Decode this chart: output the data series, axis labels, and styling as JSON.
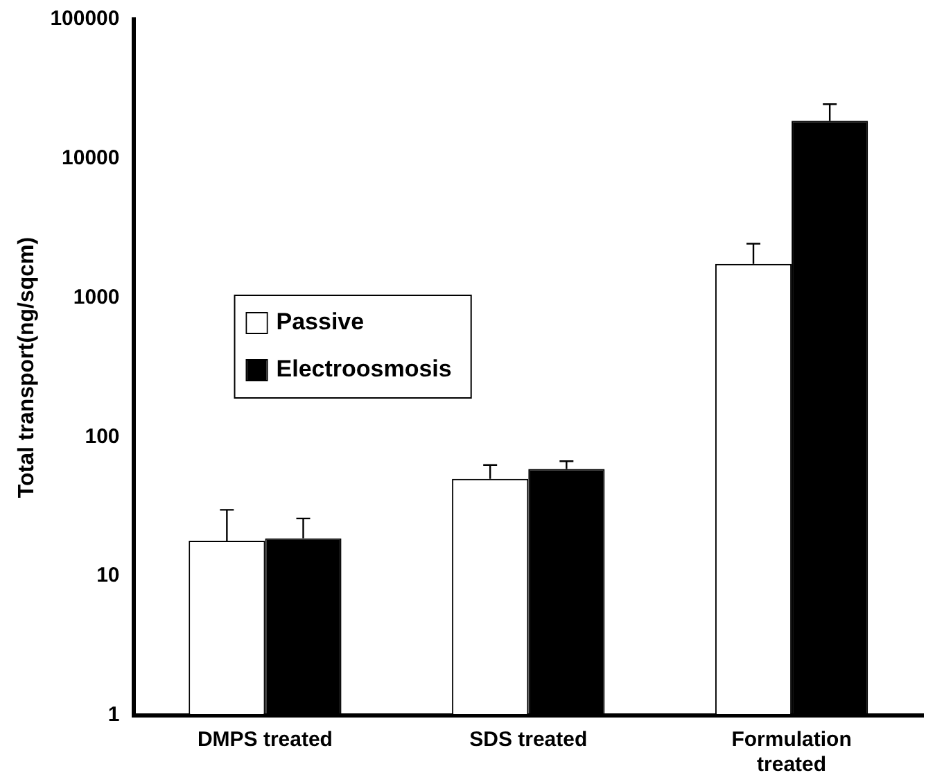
{
  "chart_data": {
    "type": "bar",
    "ylabel": "Total transport(ng/sqcm)",
    "categories": [
      "DMPS treated",
      "SDS treated",
      "Formulation treated"
    ],
    "series": [
      {
        "name": "Passive",
        "color": "#ffffff",
        "values": [
          18,
          50,
          1750
        ],
        "errors": [
          [
            18,
            30
          ],
          [
            50,
            63
          ],
          [
            1750,
            2450
          ]
        ]
      },
      {
        "name": "Electroosmosis",
        "color": "#000000",
        "values": [
          18.7,
          59,
          18700
        ],
        "errors": [
          [
            18.7,
            26
          ],
          [
            59,
            67
          ],
          [
            18700,
            24600
          ]
        ]
      }
    ],
    "log": "y",
    "ylim": [
      1,
      100000
    ],
    "yticks": [
      1,
      10,
      100,
      1000,
      10000,
      100000
    ],
    "grid": false,
    "legend": "left"
  }
}
